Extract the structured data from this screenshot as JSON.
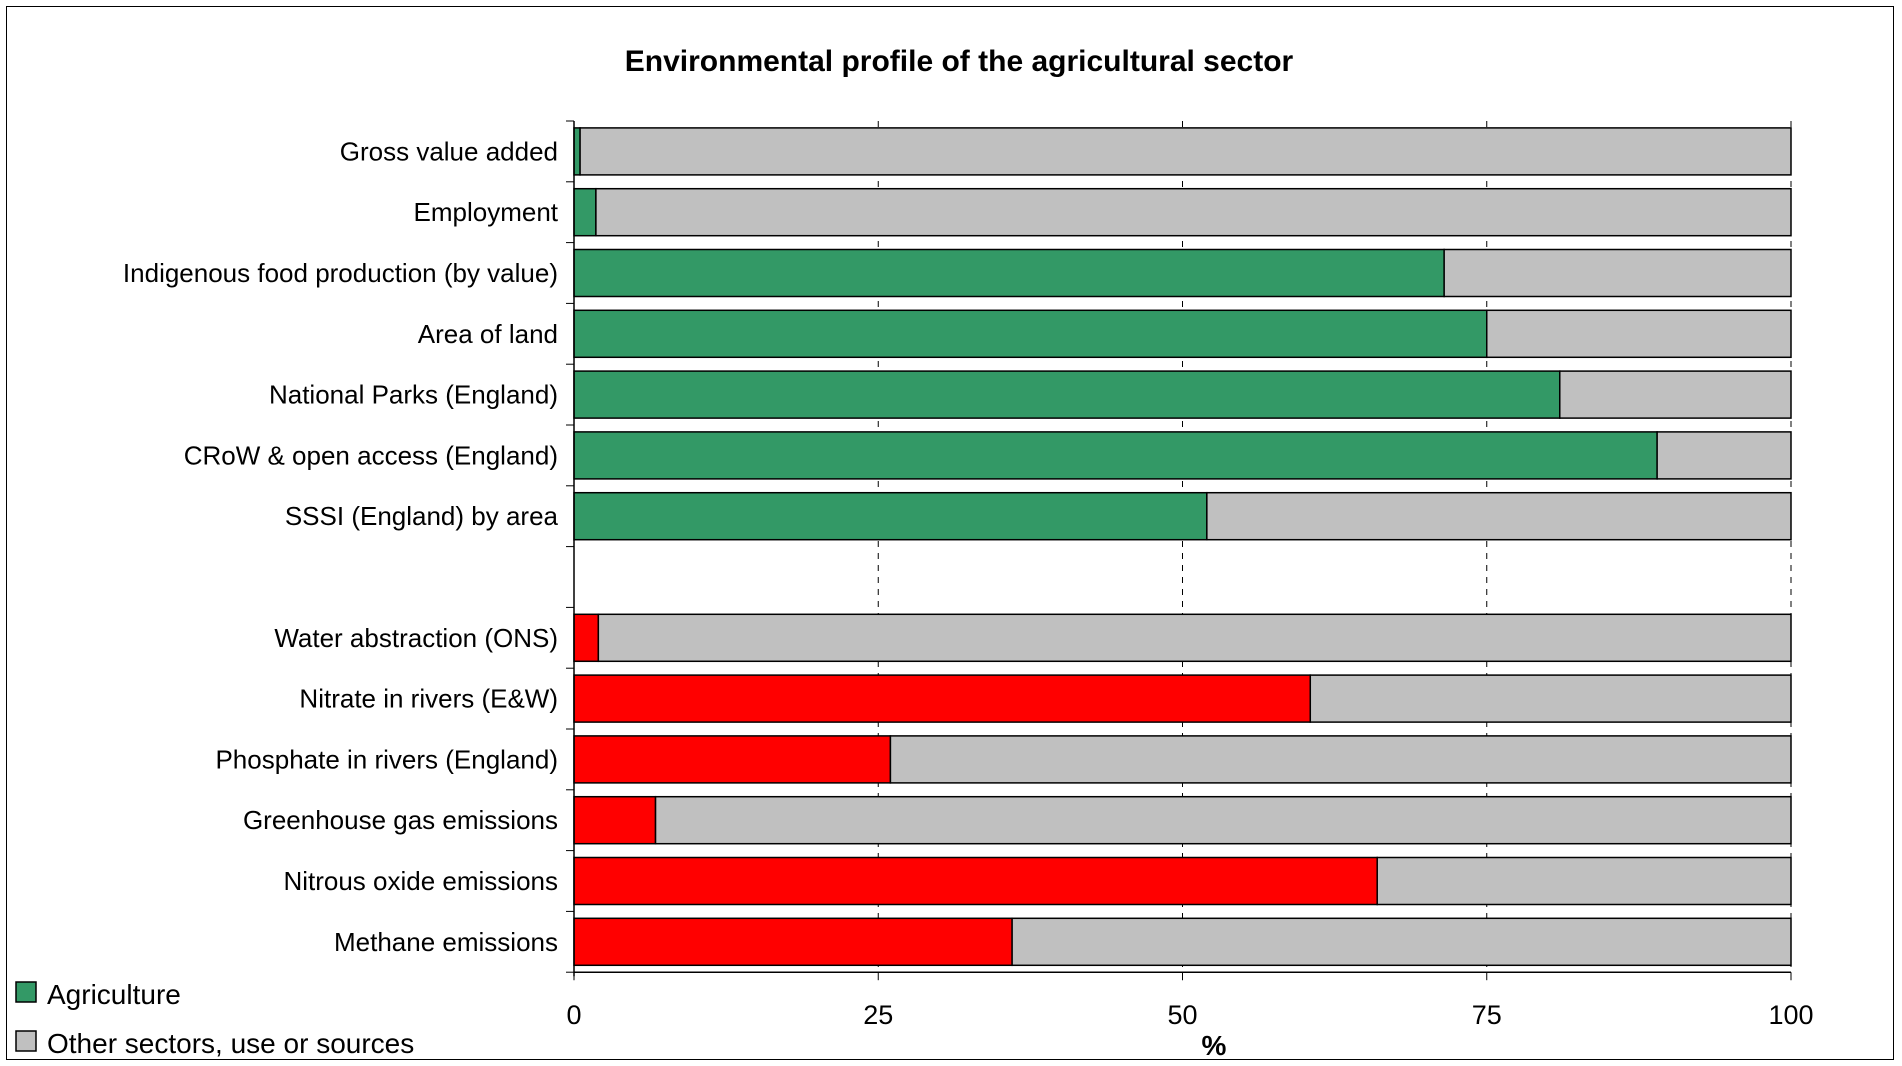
{
  "chart_data": {
    "type": "bar",
    "orientation": "horizontal",
    "stacked": "percent",
    "title": "Environmental profile of the agricultural sector",
    "xlabel": "%",
    "ylabel": "",
    "xlim": [
      0,
      100
    ],
    "x_ticks": [
      "0",
      "25",
      "50",
      "75",
      "100"
    ],
    "grid": "vertical dashed",
    "legend_position": "bottom-left",
    "categories": [
      "Gross value added",
      "Employment",
      "Indigenous food production (by value)",
      "Area of land",
      "National Parks (England)",
      "CRoW & open access (England)",
      "SSSI (England) by area",
      "",
      "Water abstraction (ONS)",
      "Nitrate in rivers (E&W)",
      "Phosphate in rivers (England)",
      "Greenhouse gas emissions",
      "Nitrous oxide emissions",
      "Methane emissions"
    ],
    "series": [
      {
        "name": "Agriculture",
        "color": "#339966",
        "negative_impact_color": "#ff0000",
        "values": [
          0.5,
          1.8,
          71.5,
          75,
          81,
          89,
          52,
          null,
          2,
          60.5,
          26,
          6.7,
          66,
          36
        ]
      },
      {
        "name": "Other sectors, use or sources",
        "color": "#c0c0c0",
        "values": [
          99.5,
          98.2,
          28.5,
          25,
          19,
          11,
          48,
          null,
          98,
          39.5,
          74,
          93.3,
          34,
          64
        ]
      }
    ]
  }
}
